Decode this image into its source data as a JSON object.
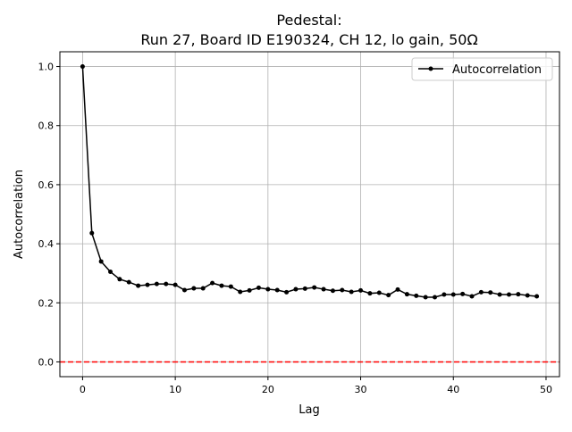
{
  "chart_data": {
    "type": "line",
    "title_line1": "Pedestal:",
    "title_line2": "Run 27, Board ID E190324, CH 12, lo gain, 50Ω",
    "xlabel": "Lag",
    "ylabel": "Autocorrelation",
    "xlim": [
      -2.45,
      51.45
    ],
    "ylim": [
      -0.05,
      1.05
    ],
    "xticks": [
      0,
      10,
      20,
      30,
      40,
      50
    ],
    "yticks": [
      0.0,
      0.2,
      0.4,
      0.6,
      0.8,
      1.0
    ],
    "xtick_labels": [
      "0",
      "10",
      "20",
      "30",
      "40",
      "50"
    ],
    "ytick_labels": [
      "0.0",
      "0.2",
      "0.4",
      "0.6",
      "0.8",
      "1.0"
    ],
    "grid": true,
    "legend_placement": "upper right",
    "series": [
      {
        "name": "Autocorrelation",
        "color": "#000000",
        "marker": "dot",
        "x": [
          0,
          1,
          2,
          3,
          4,
          5,
          6,
          7,
          8,
          9,
          10,
          11,
          12,
          13,
          14,
          15,
          16,
          17,
          18,
          19,
          20,
          21,
          22,
          23,
          24,
          25,
          26,
          27,
          28,
          29,
          30,
          31,
          32,
          33,
          34,
          35,
          36,
          37,
          38,
          39,
          40,
          41,
          42,
          43,
          44,
          45,
          46,
          47,
          48,
          49
        ],
        "values": [
          1.0,
          0.436,
          0.34,
          0.305,
          0.28,
          0.27,
          0.258,
          0.261,
          0.264,
          0.264,
          0.261,
          0.243,
          0.249,
          0.249,
          0.267,
          0.258,
          0.255,
          0.237,
          0.242,
          0.251,
          0.246,
          0.243,
          0.236,
          0.246,
          0.248,
          0.252,
          0.246,
          0.241,
          0.243,
          0.237,
          0.242,
          0.232,
          0.234,
          0.226,
          0.245,
          0.229,
          0.224,
          0.219,
          0.219,
          0.228,
          0.228,
          0.23,
          0.222,
          0.236,
          0.235,
          0.228,
          0.228,
          0.229,
          0.225,
          0.222
        ]
      }
    ],
    "reference_line": {
      "y": 0,
      "color": "#ff0000",
      "style": "dashed"
    }
  }
}
